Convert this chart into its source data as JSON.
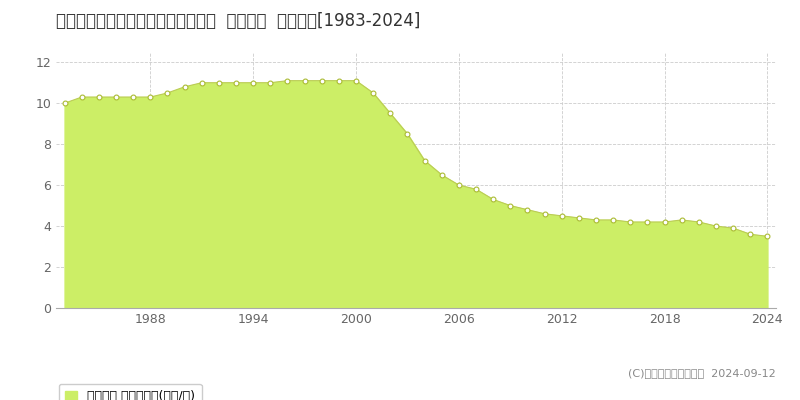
{
  "title": "北海道小樽市赤岩１丁目２７番２外  地価公示  地価推移[1983-2024]",
  "years": [
    1983,
    1984,
    1985,
    1986,
    1987,
    1988,
    1989,
    1990,
    1991,
    1992,
    1993,
    1994,
    1995,
    1996,
    1997,
    1998,
    1999,
    2000,
    2001,
    2002,
    2003,
    2004,
    2005,
    2006,
    2007,
    2008,
    2009,
    2010,
    2011,
    2012,
    2013,
    2014,
    2015,
    2016,
    2017,
    2018,
    2019,
    2020,
    2021,
    2022,
    2023,
    2024
  ],
  "values": [
    10.0,
    10.3,
    10.3,
    10.3,
    10.3,
    10.3,
    10.5,
    10.8,
    11.0,
    11.0,
    11.0,
    11.0,
    11.0,
    11.1,
    11.1,
    11.1,
    11.1,
    11.1,
    10.5,
    9.5,
    8.5,
    7.2,
    6.5,
    6.0,
    5.8,
    5.3,
    5.0,
    4.8,
    4.6,
    4.5,
    4.4,
    4.3,
    4.3,
    4.2,
    4.2,
    4.2,
    4.3,
    4.2,
    4.0,
    3.9,
    3.6,
    3.5
  ],
  "fill_color": "#ccee66",
  "line_color": "#bbcc55",
  "marker_face_color": "#ffffff",
  "marker_edge_color": "#aabb33",
  "background_color": "#ffffff",
  "plot_bg_color": "#f5f5f5",
  "grid_color": "#cccccc",
  "yticks": [
    0,
    2,
    4,
    6,
    8,
    10,
    12
  ],
  "ylim": [
    0,
    12.5
  ],
  "xlim": [
    1982.5,
    2024.5
  ],
  "xtick_years": [
    1988,
    1994,
    2000,
    2006,
    2012,
    2018,
    2024
  ],
  "legend_label": "地価公示 平均坪単価(万円/坪)",
  "copyright_text": "(C)土地価格ドットコム  2024-09-12",
  "title_fontsize": 12,
  "tick_fontsize": 9,
  "legend_fontsize": 9
}
